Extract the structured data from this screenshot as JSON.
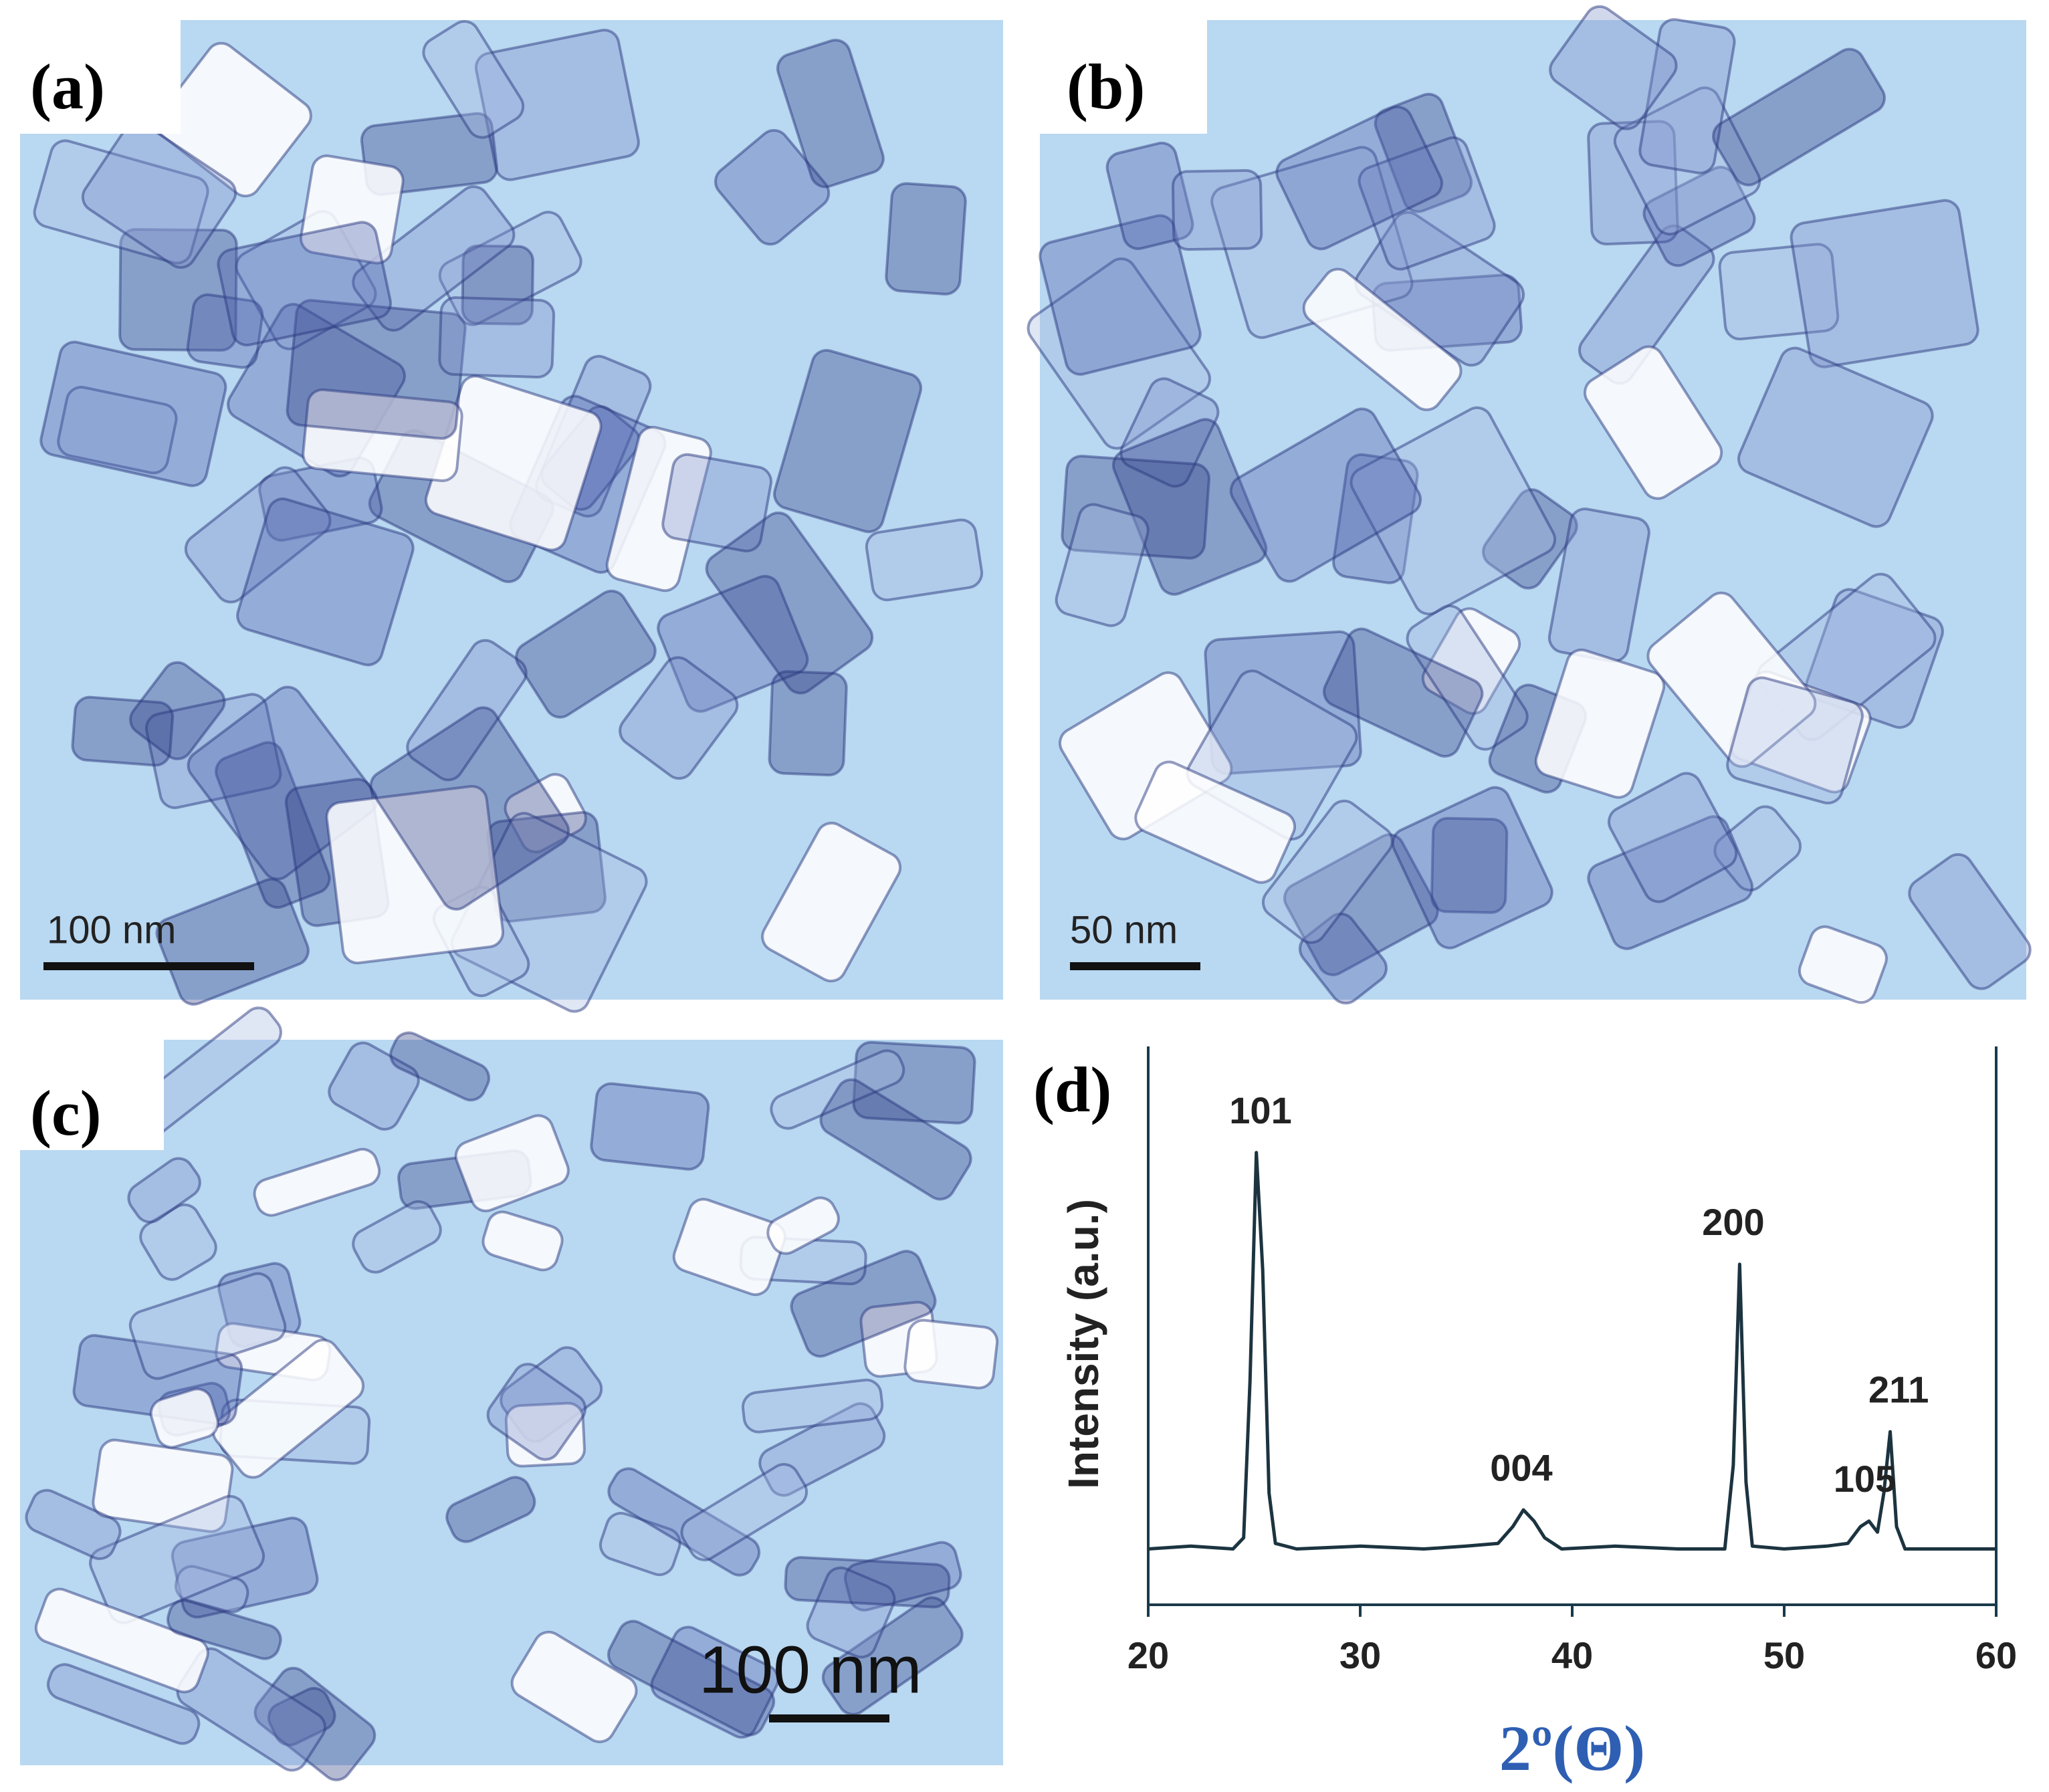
{
  "panels": [
    {
      "label": "(a)",
      "scale_bar": "100 nm"
    },
    {
      "label": "(b)",
      "scale_bar": "50 nm"
    },
    {
      "label": "(c)",
      "scale_bar": "100 nm"
    }
  ],
  "chart_data": {
    "type": "line",
    "panel_label": "(d)",
    "x_label": "2º(Θ)",
    "y_label": "Intensity (a.u.)",
    "x": [
      20,
      22,
      24,
      24.5,
      24.8,
      25.1,
      25.4,
      25.7,
      26,
      27,
      30,
      33,
      35,
      36.5,
      37.2,
      37.7,
      38.2,
      38.7,
      39.5,
      42,
      45,
      47.2,
      47.6,
      47.9,
      48.2,
      48.5,
      50,
      52,
      53,
      53.6,
      54,
      54.4,
      54.7,
      55,
      55.3,
      55.7,
      58,
      60
    ],
    "values": [
      10,
      10.5,
      10,
      12,
      40,
      81,
      60,
      20,
      11,
      10,
      10.5,
      10,
      10.5,
      11,
      14,
      17,
      15,
      12,
      10,
      10.5,
      10,
      10,
      25,
      61,
      22,
      10.5,
      10,
      10.5,
      11,
      14,
      15,
      13,
      20,
      31,
      14,
      10,
      10,
      10
    ],
    "color": "#1c3440",
    "xlim": [
      20,
      60
    ],
    "ylim": [
      0,
      100
    ],
    "xticks": [
      20,
      30,
      40,
      50,
      60
    ],
    "annotations": [
      {
        "text": "101",
        "x": 25.3,
        "y": 88
      },
      {
        "text": "004",
        "x": 37.6,
        "y": 24
      },
      {
        "text": "200",
        "x": 47.6,
        "y": 68
      },
      {
        "text": "105",
        "x": 53.8,
        "y": 22
      },
      {
        "text": "211",
        "x": 55.4,
        "y": 38
      }
    ]
  }
}
